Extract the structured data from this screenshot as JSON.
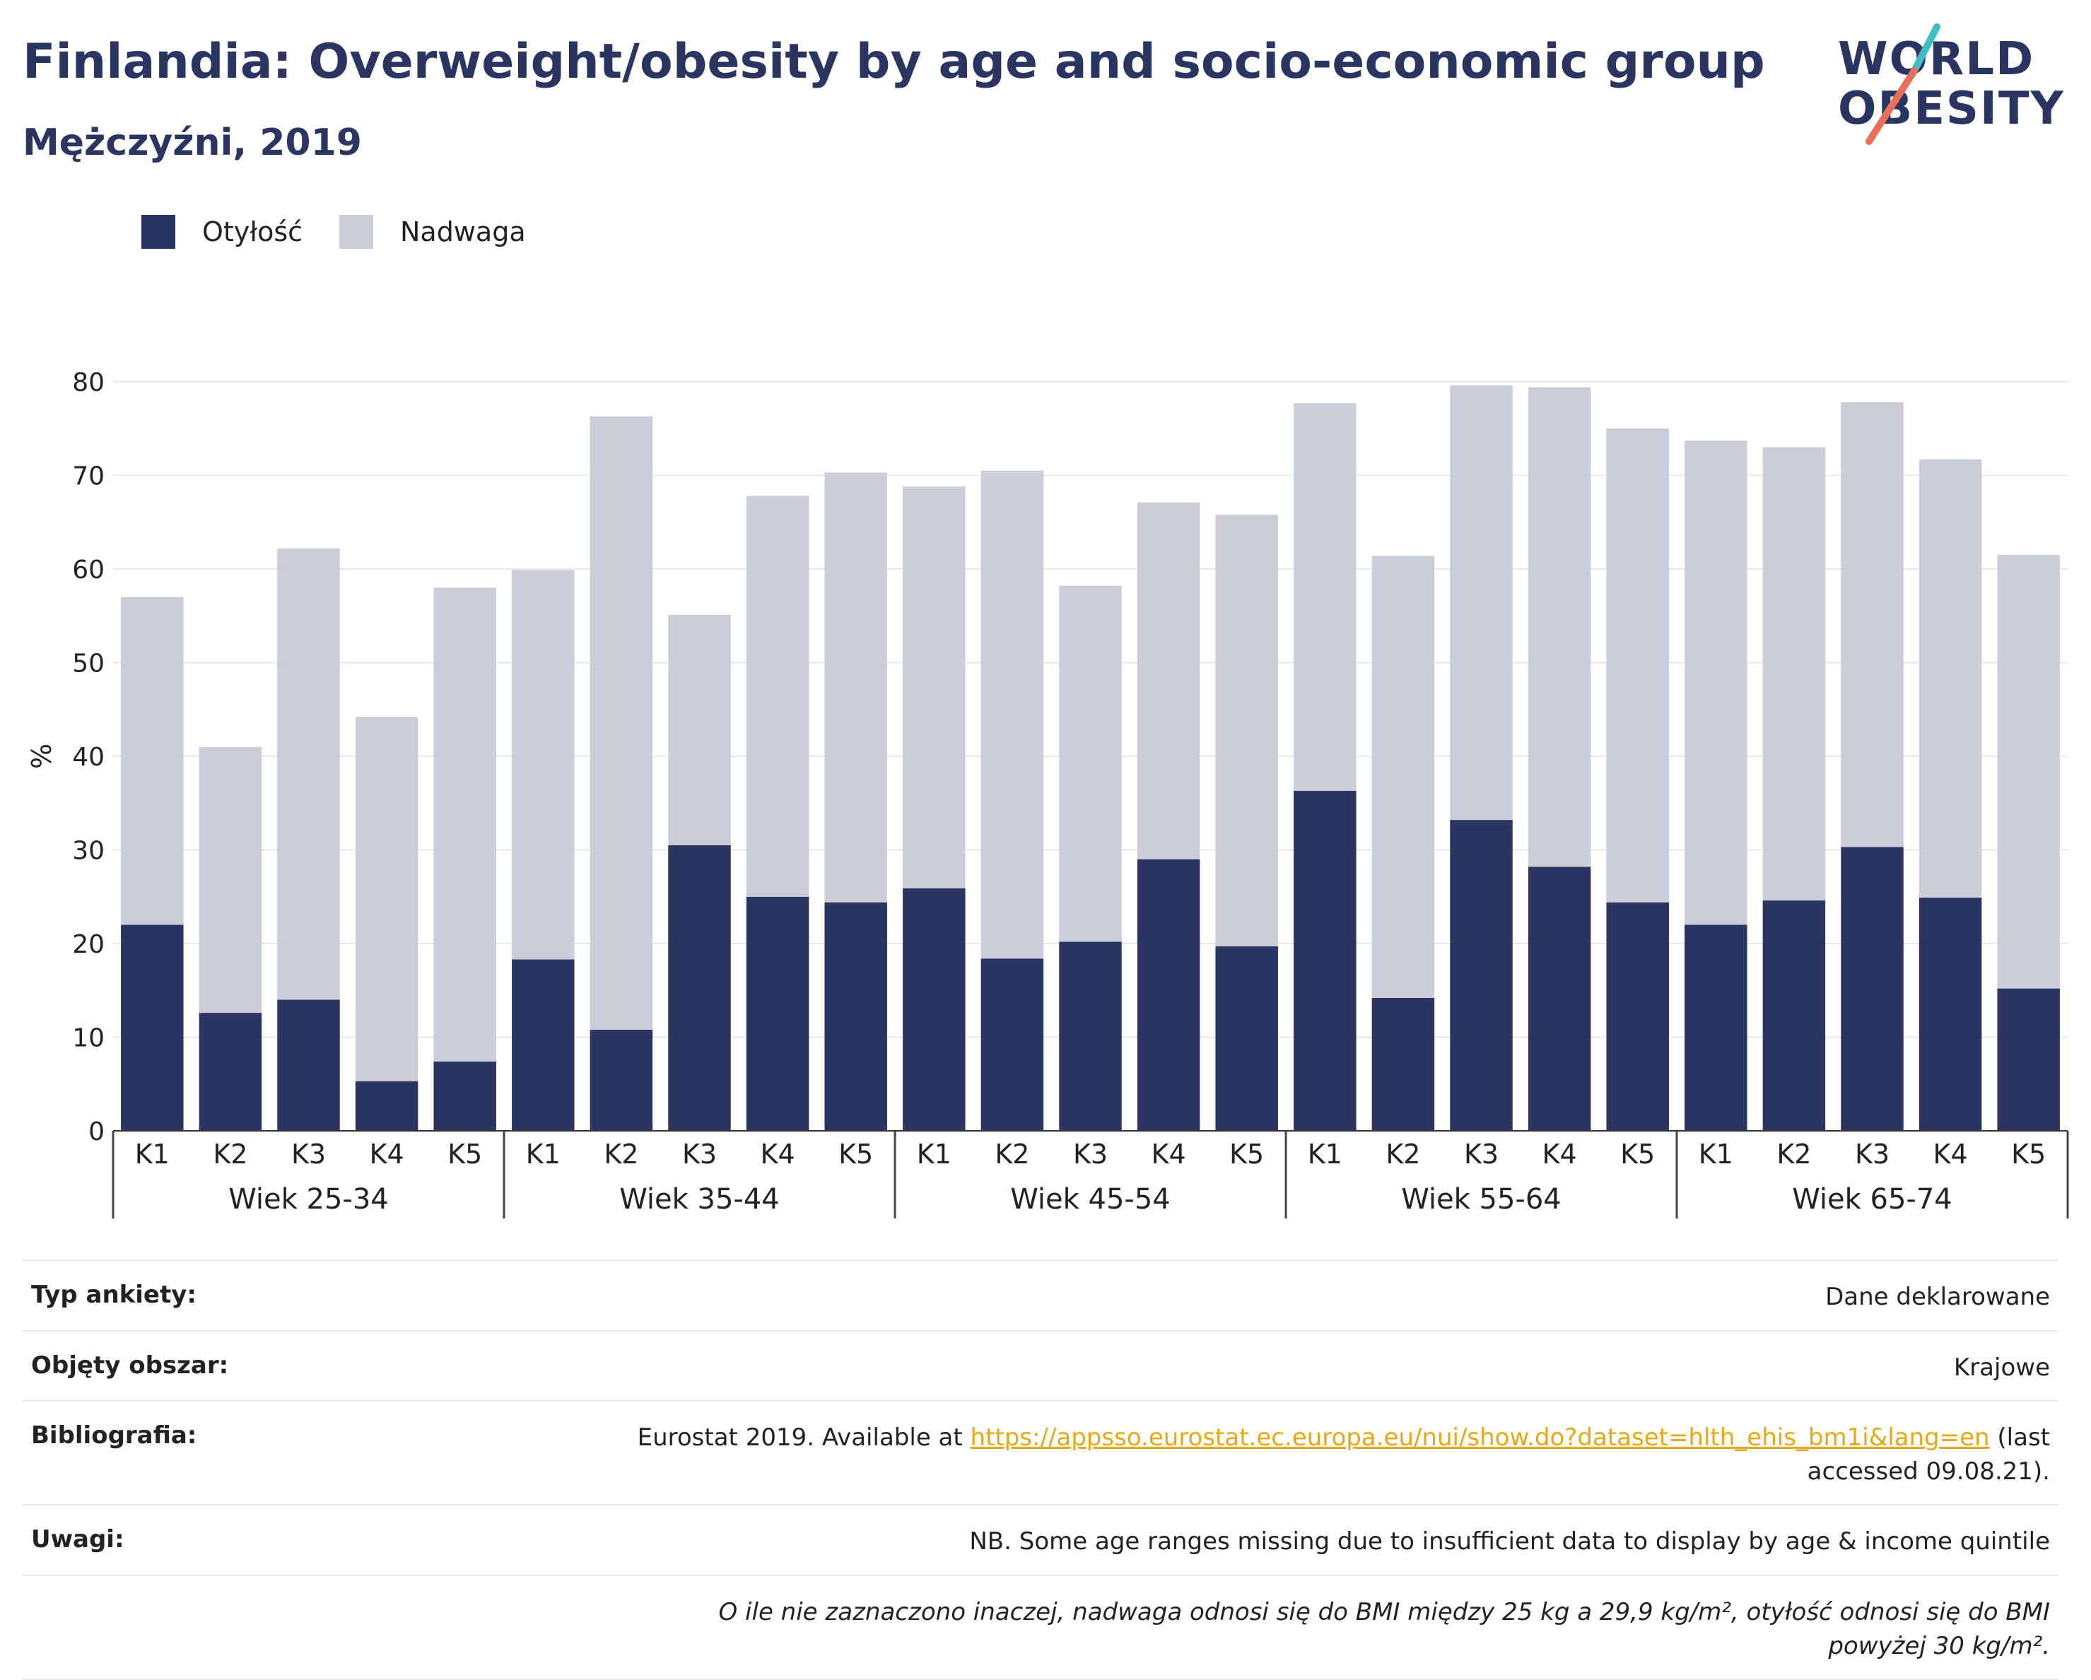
{
  "header": {
    "title": "Finlandia: Overweight/obesity by age and socio-economic group",
    "subtitle": "Mężczyźni, 2019"
  },
  "logo": {
    "line1": "WORLD",
    "line2": "OBESITY",
    "accent_colors": [
      "#3fbfbf",
      "#e8705a"
    ]
  },
  "legend": [
    {
      "label": "Otyłość",
      "color": "#2a3562"
    },
    {
      "label": "Nadwaga",
      "color": "#cbcdd9"
    }
  ],
  "chart_data": {
    "type": "bar",
    "stacked": true,
    "ylabel": "%",
    "ylim": [
      0,
      80
    ],
    "yticks": [
      0,
      10,
      20,
      30,
      40,
      50,
      60,
      70,
      80
    ],
    "grid": true,
    "legend_position": "top-left",
    "groups": [
      "Wiek 25-34",
      "Wiek 35-44",
      "Wiek 45-54",
      "Wiek 55-64",
      "Wiek 65-74"
    ],
    "categories": [
      "K1",
      "K2",
      "K3",
      "K4",
      "K5"
    ],
    "series": [
      {
        "name": "Otyłość",
        "color": "#2a3562",
        "values": [
          [
            22,
            12.6,
            14,
            5.3,
            7.4
          ],
          [
            18.3,
            10.8,
            30.5,
            25,
            24.4
          ],
          [
            25.9,
            18.4,
            20.2,
            29,
            19.7
          ],
          [
            36.3,
            14.2,
            33.2,
            28.2,
            24.4
          ],
          [
            22,
            24.6,
            30.3,
            24.9,
            15.2
          ]
        ]
      },
      {
        "name": "Nadwaga",
        "color": "#cbcdd9",
        "values": [
          [
            35,
            28.4,
            48.2,
            38.9,
            50.6
          ],
          [
            41.6,
            65.5,
            24.6,
            42.8,
            45.9
          ],
          [
            42.9,
            52.1,
            38,
            38.1,
            46.1
          ],
          [
            41.4,
            47.2,
            46.4,
            51.2,
            50.6
          ],
          [
            51.7,
            48.4,
            47.5,
            46.8,
            46.3
          ]
        ]
      }
    ]
  },
  "info_table": {
    "rows": [
      {
        "label": "Typ ankiety:",
        "value": "Dane deklarowane"
      },
      {
        "label": "Objęty obszar:",
        "value": "Krajowe"
      },
      {
        "label": "Bibliografia:",
        "value_pre": "Eurostat 2019. Available at ",
        "link": "https://appsso.eurostat.ec.europa.eu/nui/show.do?dataset=hlth_ehis_bm1i&lang=en",
        "value_post": " (last accessed 09.08.21)."
      },
      {
        "label": "Uwagi:",
        "value": "NB. Some age ranges missing due to insufficient data to display by age & income quintile"
      }
    ],
    "footnote": "O ile nie zaznaczono inaczej, nadwaga odnosi się do BMI między 25 kg a 29,9 kg/m², otyłość odnosi się do BMI powyżej 30 kg/m²."
  }
}
